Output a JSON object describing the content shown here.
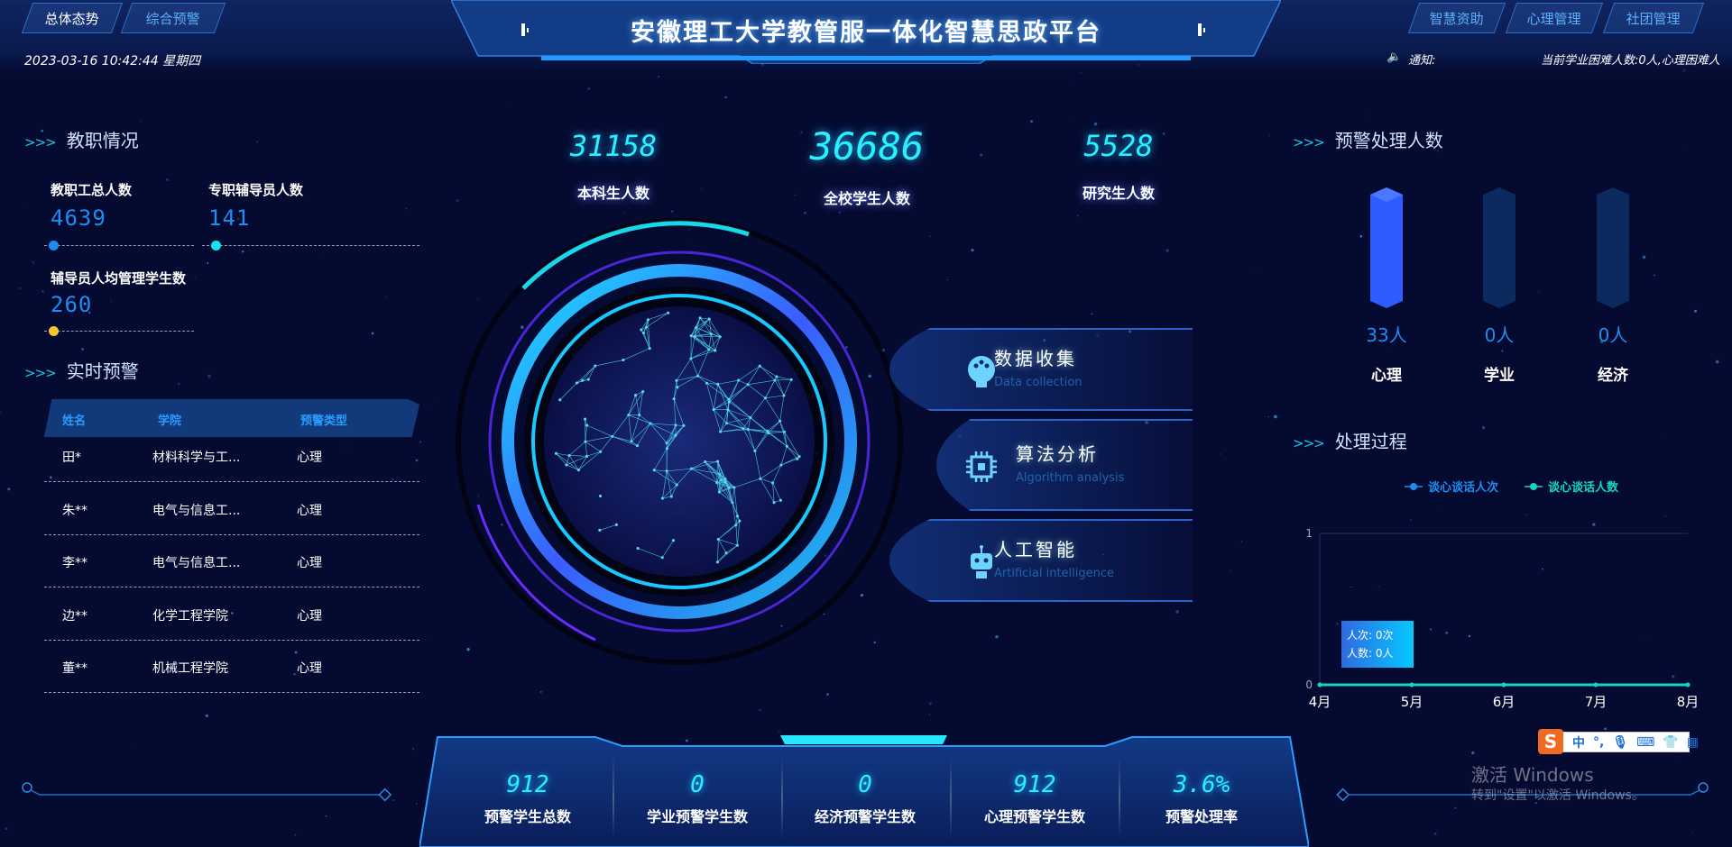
{
  "header": {
    "title": "安徽理工大学教管服一体化智慧思政平台",
    "left_tabs": [
      {
        "label": "总体态势"
      },
      {
        "label": "综合预警"
      }
    ],
    "right_tabs": [
      {
        "label": "智慧资助"
      },
      {
        "label": "心理管理"
      },
      {
        "label": "社团管理"
      }
    ],
    "datetime": "2023-03-16 10:42:44 星期四",
    "notice_label": "通知:",
    "notice_text": "当前学业困难人数:0人,心理困难人",
    "icons": {
      "notice": "speaker-icon"
    }
  },
  "staff": {
    "title": "教职情况",
    "items": [
      {
        "label": "教职工总人数",
        "value": "4639",
        "dot_color": "#1e8cf0"
      },
      {
        "label": "专职辅导员人数",
        "value": "141",
        "dot_color": "#19e0f0"
      },
      {
        "label": "辅导员人均管理学生数",
        "value": "260",
        "dot_color": "#f5c431"
      }
    ]
  },
  "alerts": {
    "title": "实时预警",
    "columns": [
      "姓名",
      "学院",
      "预警类型"
    ],
    "rows": [
      [
        "田*",
        "材料科学与工...",
        "心理"
      ],
      [
        "朱**",
        "电气与信息工...",
        "心理"
      ],
      [
        "李**",
        "电气与信息工...",
        "心理"
      ],
      [
        "边**",
        "化学工程学院",
        "心理"
      ],
      [
        "董**",
        "机械工程学院",
        "心理"
      ]
    ]
  },
  "students": [
    {
      "value": "31158",
      "label": "本科生人数"
    },
    {
      "value": "36686",
      "label": "全校学生人数"
    },
    {
      "value": "5528",
      "label": "研究生人数"
    }
  ],
  "features": [
    {
      "title": "数据收集",
      "subtitle": "Data collection",
      "icon": "brain-icon"
    },
    {
      "title": "算法分析",
      "subtitle": "Algorithm analysis",
      "icon": "chip-icon"
    },
    {
      "title": "人工智能",
      "subtitle": "Artificial intelligence",
      "icon": "robot-icon"
    }
  ],
  "handled": {
    "title": "预警处理人数"
  },
  "process": {
    "title": "处理过程",
    "tooltip": {
      "line1": "人次: 0次",
      "line2": "人数: 0人"
    }
  },
  "chart_data": [
    {
      "type": "bar",
      "categories": [
        "心理",
        "学业",
        "经济"
      ],
      "values": [
        33,
        0,
        0
      ],
      "value_labels": [
        "33人",
        "0人",
        "0人"
      ],
      "colors": {
        "fill": "#2f5cff",
        "track": "#0c2a5e"
      }
    },
    {
      "type": "line",
      "x": [
        "4月",
        "5月",
        "6月",
        "7月",
        "8月"
      ],
      "series": [
        {
          "name": "谈心谈话人次",
          "values": [
            0,
            0,
            0,
            0,
            0
          ],
          "color": "#1e8cf0"
        },
        {
          "name": "谈心谈话人数",
          "values": [
            0,
            0,
            0,
            0,
            0
          ],
          "color": "#19d3c5"
        }
      ],
      "ylim": [
        0,
        1
      ],
      "yticks": [
        "0",
        "1"
      ],
      "legend": "top-center"
    }
  ],
  "summary": [
    {
      "value": "912",
      "label": "预警学生总数"
    },
    {
      "value": "0",
      "label": "学业预警学生数"
    },
    {
      "value": "0",
      "label": "经济预警学生数"
    },
    {
      "value": "912",
      "label": "心理预警学生数"
    },
    {
      "value": "3.6%",
      "label": "预警处理率"
    }
  ],
  "system": {
    "watermark_line1": "激活 Windows",
    "watermark_line2": "转到\"设置\"以激活 Windows。",
    "ime_logo": "S",
    "ime_mode": "中",
    "ime_punct": "°,"
  }
}
